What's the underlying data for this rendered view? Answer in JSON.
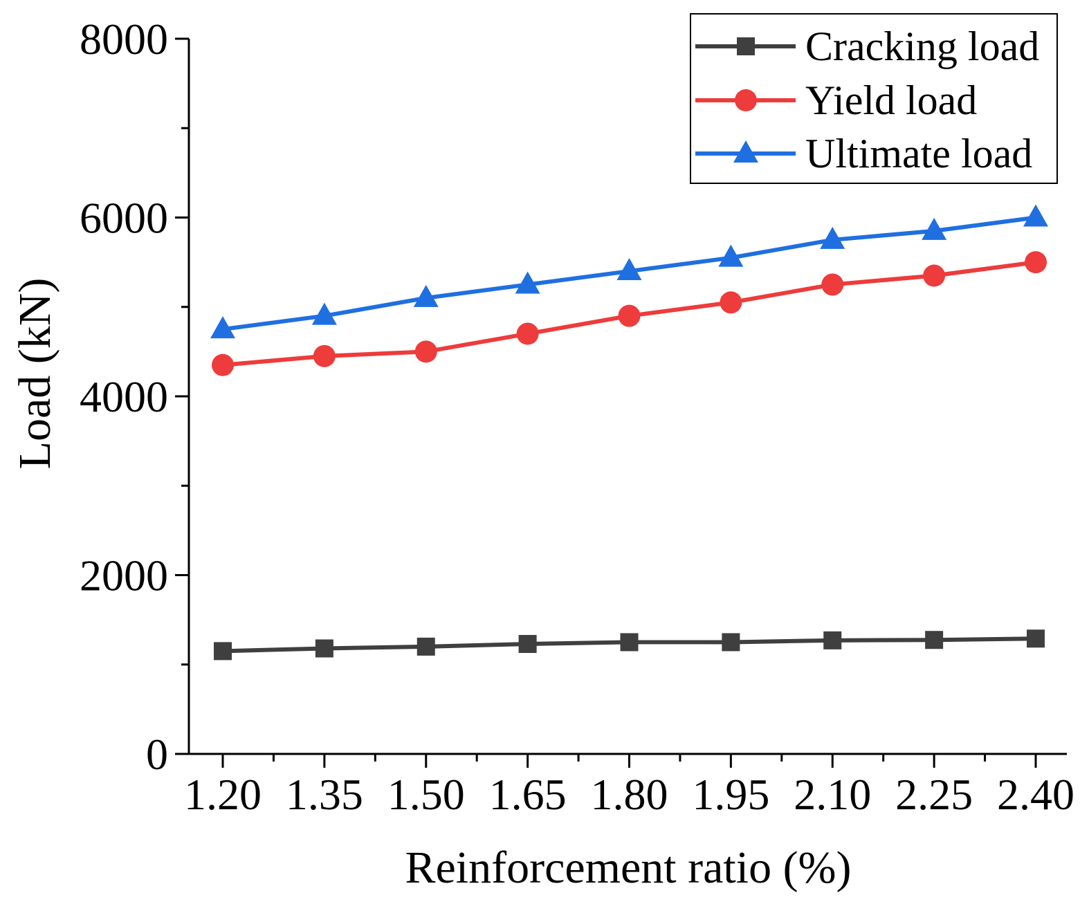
{
  "chart_data": {
    "type": "line",
    "title": "",
    "xlabel": "Reinforcement ratio (%)",
    "ylabel": "Load (kN)",
    "ylim": [
      0,
      8000
    ],
    "y_major_ticks": [
      0,
      2000,
      4000,
      6000,
      8000
    ],
    "y_major_tick_labels": [
      "0",
      "2000",
      "4000",
      "6000",
      "8000"
    ],
    "y_minor_step": 1000,
    "x": [
      1.2,
      1.35,
      1.5,
      1.65,
      1.8,
      1.95,
      2.1,
      2.25,
      2.4
    ],
    "x_tick_labels": [
      "1.20",
      "1.35",
      "1.50",
      "1.65",
      "1.80",
      "1.95",
      "2.10",
      "2.25",
      "2.40"
    ],
    "legend_position": "top-right",
    "series": [
      {
        "name": "Cracking load",
        "color": "#3f3f3f",
        "marker": "square",
        "values": [
          1150,
          1180,
          1200,
          1230,
          1250,
          1250,
          1270,
          1275,
          1290
        ]
      },
      {
        "name": "Yield load",
        "color": "#ee3b3b",
        "marker": "circle",
        "values": [
          4350,
          4450,
          4500,
          4700,
          4900,
          5050,
          5250,
          5350,
          5500
        ]
      },
      {
        "name": "Ultimate load",
        "color": "#1f6fe0",
        "marker": "triangle",
        "values": [
          4750,
          4900,
          5100,
          5250,
          5400,
          5550,
          5750,
          5850,
          6000
        ]
      }
    ]
  }
}
